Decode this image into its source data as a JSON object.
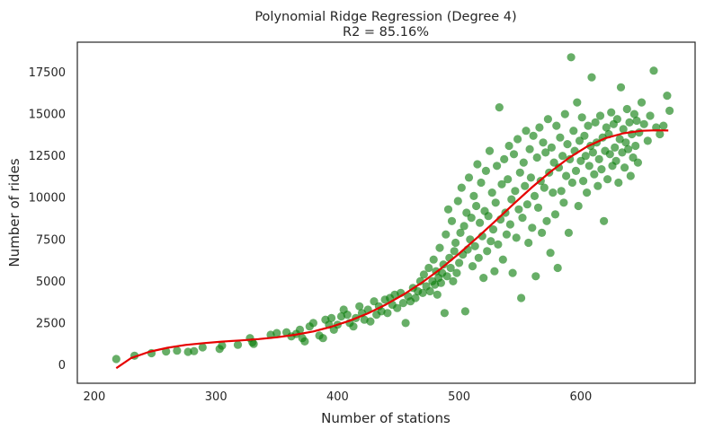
{
  "chart_data": {
    "type": "scatter",
    "title": "Polynomial Ridge Regression (Degree 4)",
    "subtitle": "R2 = 85.16%",
    "xlabel": "Number of stations",
    "ylabel": "Number of rides",
    "xlim": [
      186,
      694
    ],
    "ylim": [
      -1100,
      19300
    ],
    "x_ticks": [
      200,
      300,
      400,
      500,
      600
    ],
    "y_ticks": [
      0,
      2500,
      5000,
      7500,
      10000,
      12500,
      15000,
      17500
    ],
    "grid": false,
    "legend": "none",
    "colors": {
      "points": "#0a7d0a",
      "fit_line": "#e60000",
      "frame": "#262626"
    },
    "series": [
      {
        "type": "scatter",
        "points": [
          [
            218,
            350
          ],
          [
            233,
            550
          ],
          [
            247,
            700
          ],
          [
            259,
            800
          ],
          [
            268,
            850
          ],
          [
            277,
            780
          ],
          [
            282,
            820
          ],
          [
            289,
            1050
          ],
          [
            303,
            950
          ],
          [
            305,
            1150
          ],
          [
            318,
            1200
          ],
          [
            328,
            1600
          ],
          [
            330,
            1350
          ],
          [
            331,
            1250
          ],
          [
            345,
            1800
          ],
          [
            350,
            1900
          ],
          [
            358,
            1950
          ],
          [
            362,
            1700
          ],
          [
            366,
            1850
          ],
          [
            369,
            2100
          ],
          [
            371,
            1600
          ],
          [
            373,
            1400
          ],
          [
            377,
            2300
          ],
          [
            380,
            2500
          ],
          [
            385,
            1750
          ],
          [
            388,
            1600
          ],
          [
            390,
            2700
          ],
          [
            393,
            2400
          ],
          [
            395,
            2800
          ],
          [
            397,
            2100
          ],
          [
            400,
            2400
          ],
          [
            403,
            2900
          ],
          [
            405,
            3300
          ],
          [
            408,
            3000
          ],
          [
            410,
            2500
          ],
          [
            413,
            2300
          ],
          [
            415,
            2800
          ],
          [
            418,
            3500
          ],
          [
            420,
            3100
          ],
          [
            422,
            2700
          ],
          [
            425,
            3300
          ],
          [
            427,
            2600
          ],
          [
            430,
            3800
          ],
          [
            432,
            3000
          ],
          [
            434,
            3500
          ],
          [
            436,
            3200
          ],
          [
            439,
            3900
          ],
          [
            441,
            3100
          ],
          [
            443,
            4000
          ],
          [
            445,
            3600
          ],
          [
            447,
            4200
          ],
          [
            449,
            3400
          ],
          [
            452,
            4300
          ],
          [
            454,
            3700
          ],
          [
            456,
            2500
          ],
          [
            458,
            4100
          ],
          [
            460,
            3800
          ],
          [
            462,
            4600
          ],
          [
            464,
            4000
          ],
          [
            466,
            4400
          ],
          [
            468,
            5000
          ],
          [
            470,
            4300
          ],
          [
            471,
            5400
          ],
          [
            473,
            4700
          ],
          [
            475,
            5800
          ],
          [
            476,
            4400
          ],
          [
            478,
            5000
          ],
          [
            479,
            6300
          ],
          [
            480,
            4800
          ],
          [
            481,
            5600
          ],
          [
            482,
            4200
          ],
          [
            483,
            5200
          ],
          [
            484,
            7000
          ],
          [
            485,
            4900
          ],
          [
            486,
            5500
          ],
          [
            487,
            6000
          ],
          [
            488,
            3100
          ],
          [
            489,
            7800
          ],
          [
            490,
            5300
          ],
          [
            491,
            9300
          ],
          [
            492,
            6400
          ],
          [
            493,
            5800
          ],
          [
            494,
            8600
          ],
          [
            495,
            5000
          ],
          [
            496,
            6800
          ],
          [
            497,
            7300
          ],
          [
            498,
            5500
          ],
          [
            499,
            9800
          ],
          [
            500,
            6100
          ],
          [
            501,
            7900
          ],
          [
            502,
            10600
          ],
          [
            503,
            6600
          ],
          [
            504,
            8300
          ],
          [
            505,
            3200
          ],
          [
            506,
            9100
          ],
          [
            507,
            6900
          ],
          [
            508,
            11200
          ],
          [
            509,
            7500
          ],
          [
            510,
            8800
          ],
          [
            511,
            5900
          ],
          [
            512,
            10100
          ],
          [
            513,
            7100
          ],
          [
            514,
            9500
          ],
          [
            515,
            12000
          ],
          [
            516,
            6400
          ],
          [
            517,
            8500
          ],
          [
            518,
            10900
          ],
          [
            519,
            7700
          ],
          [
            520,
            5200
          ],
          [
            521,
            9200
          ],
          [
            522,
            11600
          ],
          [
            523,
            6800
          ],
          [
            524,
            8900
          ],
          [
            525,
            12800
          ],
          [
            526,
            7400
          ],
          [
            527,
            10300
          ],
          [
            528,
            8100
          ],
          [
            529,
            5600
          ],
          [
            530,
            9700
          ],
          [
            531,
            11900
          ],
          [
            532,
            7200
          ],
          [
            533,
            15400
          ],
          [
            534,
            8700
          ],
          [
            535,
            10800
          ],
          [
            536,
            6300
          ],
          [
            537,
            12300
          ],
          [
            538,
            9100
          ],
          [
            539,
            7800
          ],
          [
            540,
            11100
          ],
          [
            541,
            13100
          ],
          [
            542,
            8400
          ],
          [
            543,
            9900
          ],
          [
            544,
            5500
          ],
          [
            545,
            12600
          ],
          [
            546,
            10400
          ],
          [
            547,
            7600
          ],
          [
            548,
            13500
          ],
          [
            549,
            9300
          ],
          [
            550,
            11500
          ],
          [
            551,
            4000
          ],
          [
            552,
            8800
          ],
          [
            553,
            12100
          ],
          [
            554,
            10700
          ],
          [
            555,
            14000
          ],
          [
            556,
            9600
          ],
          [
            557,
            7300
          ],
          [
            558,
            12900
          ],
          [
            559,
            11200
          ],
          [
            560,
            8200
          ],
          [
            561,
            13700
          ],
          [
            562,
            10100
          ],
          [
            563,
            5300
          ],
          [
            564,
            12400
          ],
          [
            565,
            9400
          ],
          [
            566,
            14200
          ],
          [
            567,
            11000
          ],
          [
            568,
            7900
          ],
          [
            569,
            13300
          ],
          [
            570,
            10600
          ],
          [
            571,
            12700
          ],
          [
            572,
            8600
          ],
          [
            573,
            14700
          ],
          [
            574,
            11500
          ],
          [
            575,
            6700
          ],
          [
            576,
            13000
          ],
          [
            577,
            10300
          ],
          [
            578,
            12100
          ],
          [
            579,
            9000
          ],
          [
            580,
            14300
          ],
          [
            581,
            5800
          ],
          [
            582,
            11800
          ],
          [
            583,
            13600
          ],
          [
            584,
            10400
          ],
          [
            585,
            12500
          ],
          [
            586,
            9700
          ],
          [
            587,
            15000
          ],
          [
            588,
            11300
          ],
          [
            589,
            13200
          ],
          [
            590,
            7900
          ],
          [
            591,
            12300
          ],
          [
            592,
            18400
          ],
          [
            593,
            10900
          ],
          [
            594,
            14000
          ],
          [
            595,
            12800
          ],
          [
            596,
            11600
          ],
          [
            597,
            15700
          ],
          [
            598,
            9500
          ],
          [
            599,
            13400
          ],
          [
            600,
            12200
          ],
          [
            601,
            14800
          ],
          [
            602,
            11000
          ],
          [
            603,
            13700
          ],
          [
            604,
            12500
          ],
          [
            605,
            10300
          ],
          [
            606,
            14300
          ],
          [
            607,
            11900
          ],
          [
            608,
            13100
          ],
          [
            609,
            17200
          ],
          [
            610,
            12700
          ],
          [
            611,
            11400
          ],
          [
            612,
            14500
          ],
          [
            613,
            13300
          ],
          [
            614,
            10700
          ],
          [
            615,
            12300
          ],
          [
            616,
            14900
          ],
          [
            617,
            11700
          ],
          [
            618,
            13600
          ],
          [
            619,
            8600
          ],
          [
            620,
            12800
          ],
          [
            621,
            14200
          ],
          [
            622,
            11100
          ],
          [
            623,
            13800
          ],
          [
            624,
            12600
          ],
          [
            625,
            15100
          ],
          [
            626,
            11900
          ],
          [
            627,
            14400
          ],
          [
            628,
            13000
          ],
          [
            629,
            12200
          ],
          [
            630,
            14700
          ],
          [
            631,
            10900
          ],
          [
            632,
            13500
          ],
          [
            633,
            16600
          ],
          [
            634,
            12700
          ],
          [
            635,
            14100
          ],
          [
            636,
            11800
          ],
          [
            637,
            13300
          ],
          [
            638,
            15300
          ],
          [
            639,
            12900
          ],
          [
            640,
            14500
          ],
          [
            641,
            11300
          ],
          [
            642,
            13800
          ],
          [
            643,
            12400
          ],
          [
            644,
            15000
          ],
          [
            645,
            13100
          ],
          [
            646,
            14600
          ],
          [
            647,
            12100
          ],
          [
            648,
            13900
          ],
          [
            650,
            15700
          ],
          [
            652,
            14400
          ],
          [
            655,
            13400
          ],
          [
            657,
            14900
          ],
          [
            660,
            17600
          ],
          [
            662,
            14200
          ],
          [
            665,
            13800
          ],
          [
            668,
            14300
          ],
          [
            671,
            16100
          ],
          [
            673,
            15200
          ]
        ]
      },
      {
        "type": "line",
        "points": [
          [
            218,
            -200
          ],
          [
            230,
            400
          ],
          [
            245,
            780
          ],
          [
            260,
            1020
          ],
          [
            275,
            1190
          ],
          [
            290,
            1300
          ],
          [
            305,
            1390
          ],
          [
            320,
            1460
          ],
          [
            335,
            1540
          ],
          [
            350,
            1650
          ],
          [
            365,
            1800
          ],
          [
            380,
            2000
          ],
          [
            395,
            2280
          ],
          [
            410,
            2640
          ],
          [
            425,
            3080
          ],
          [
            440,
            3620
          ],
          [
            455,
            4240
          ],
          [
            470,
            4950
          ],
          [
            485,
            5760
          ],
          [
            500,
            6660
          ],
          [
            515,
            7620
          ],
          [
            530,
            8620
          ],
          [
            545,
            9640
          ],
          [
            560,
            10630
          ],
          [
            575,
            11550
          ],
          [
            590,
            12370
          ],
          [
            605,
            13050
          ],
          [
            620,
            13550
          ],
          [
            635,
            13850
          ],
          [
            650,
            14000
          ],
          [
            662,
            14030
          ],
          [
            672,
            14020
          ]
        ]
      }
    ]
  }
}
